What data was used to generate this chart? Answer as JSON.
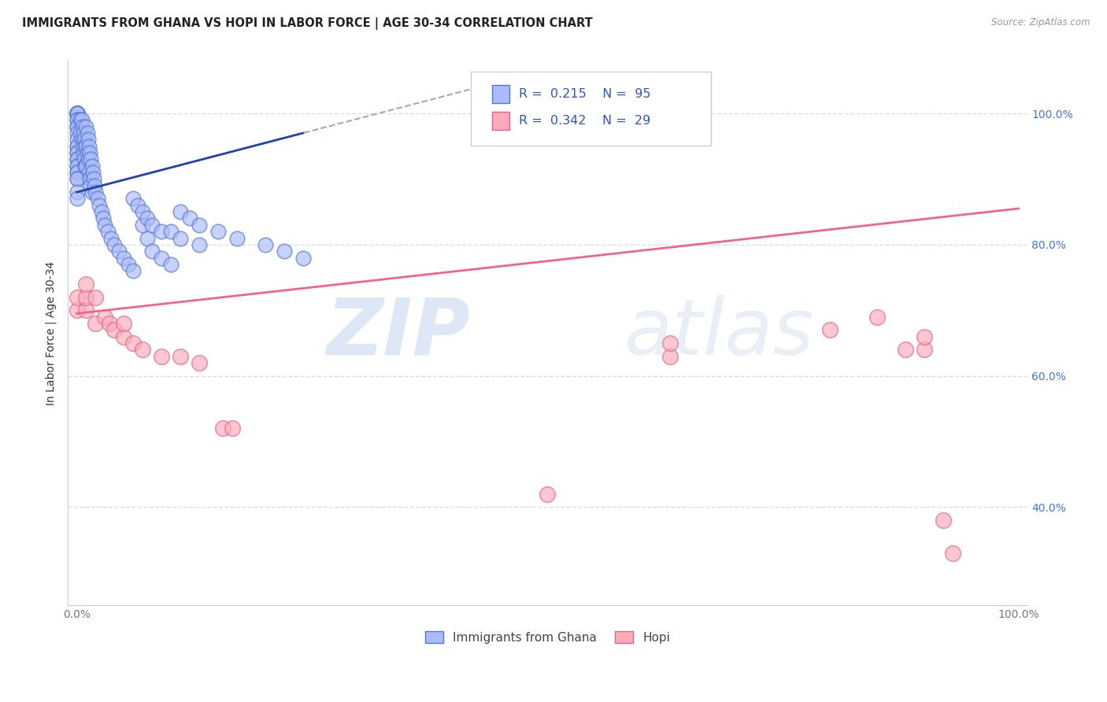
{
  "title": "IMMIGRANTS FROM GHANA VS HOPI IN LABOR FORCE | AGE 30-34 CORRELATION CHART",
  "source_text": "Source: ZipAtlas.com",
  "ylabel": "In Labor Force | Age 30-34",
  "xlim": [
    -0.01,
    1.01
  ],
  "ylim": [
    0.25,
    1.08
  ],
  "x_tick_positions": [
    0.0,
    0.2,
    0.4,
    0.6,
    0.8,
    1.0
  ],
  "x_tick_labels": [
    "0.0%",
    "",
    "",
    "",
    "",
    "100.0%"
  ],
  "y_tick_positions": [
    0.4,
    0.6,
    0.8,
    1.0
  ],
  "y_tick_labels": [
    "40.0%",
    "60.0%",
    "80.0%",
    "100.0%"
  ],
  "blue_R": 0.215,
  "blue_N": 95,
  "pink_R": 0.342,
  "pink_N": 29,
  "watermark_zip": "ZIP",
  "watermark_atlas": "atlas",
  "background_color": "#ffffff",
  "grid_color": "#dddddd",
  "blue_color": "#aabbff",
  "blue_edge_color": "#5577cc",
  "pink_color": "#ffaabb",
  "pink_edge_color": "#dd6688",
  "blue_line_color": "#2244aa",
  "blue_dash_color": "#99aacc",
  "pink_line_color": "#ee6688",
  "tick_color": "#4477dd",
  "legend_labels": [
    "Immigrants from Ghana",
    "Hopi"
  ],
  "title_fontsize": 10.5,
  "label_fontsize": 10,
  "tick_fontsize": 10,
  "legend_fontsize": 11,
  "blue_scatter_x": [
    0.0,
    0.0,
    0.0,
    0.0,
    0.0,
    0.0,
    0.0,
    0.0,
    0.0,
    0.0,
    0.0,
    0.0,
    0.0,
    0.0,
    0.0,
    0.0,
    0.0,
    0.0,
    0.0,
    0.0,
    0.0,
    0.0,
    0.0,
    0.0,
    0.0,
    0.0,
    0.0,
    0.0,
    0.0,
    0.0,
    0.004,
    0.004,
    0.005,
    0.005,
    0.006,
    0.006,
    0.007,
    0.007,
    0.008,
    0.008,
    0.009,
    0.009,
    0.01,
    0.01,
    0.01,
    0.011,
    0.011,
    0.012,
    0.012,
    0.013,
    0.013,
    0.014,
    0.014,
    0.015,
    0.015,
    0.016,
    0.016,
    0.017,
    0.018,
    0.019,
    0.02,
    0.022,
    0.024,
    0.026,
    0.028,
    0.03,
    0.033,
    0.036,
    0.04,
    0.045,
    0.05,
    0.055,
    0.06,
    0.07,
    0.075,
    0.08,
    0.09,
    0.1,
    0.11,
    0.12,
    0.13,
    0.15,
    0.17,
    0.2,
    0.22,
    0.24,
    0.06,
    0.065,
    0.07,
    0.075,
    0.08,
    0.09,
    0.1,
    0.11,
    0.13
  ],
  "blue_scatter_y": [
    1.0,
    1.0,
    1.0,
    1.0,
    1.0,
    1.0,
    1.0,
    1.0,
    1.0,
    1.0,
    0.99,
    0.99,
    0.98,
    0.98,
    0.97,
    0.96,
    0.95,
    0.95,
    0.94,
    0.94,
    0.93,
    0.93,
    0.92,
    0.92,
    0.91,
    0.91,
    0.9,
    0.9,
    0.88,
    0.87,
    0.99,
    0.97,
    0.99,
    0.96,
    0.98,
    0.95,
    0.97,
    0.94,
    0.96,
    0.93,
    0.95,
    0.92,
    0.98,
    0.95,
    0.92,
    0.97,
    0.94,
    0.96,
    0.93,
    0.95,
    0.91,
    0.94,
    0.9,
    0.93,
    0.89,
    0.92,
    0.88,
    0.91,
    0.9,
    0.89,
    0.88,
    0.87,
    0.86,
    0.85,
    0.84,
    0.83,
    0.82,
    0.81,
    0.8,
    0.79,
    0.78,
    0.77,
    0.76,
    0.83,
    0.81,
    0.79,
    0.78,
    0.77,
    0.85,
    0.84,
    0.83,
    0.82,
    0.81,
    0.8,
    0.79,
    0.78,
    0.87,
    0.86,
    0.85,
    0.84,
    0.83,
    0.82,
    0.82,
    0.81,
    0.8
  ],
  "pink_scatter_x": [
    0.0,
    0.0,
    0.01,
    0.01,
    0.01,
    0.02,
    0.02,
    0.03,
    0.035,
    0.04,
    0.05,
    0.05,
    0.06,
    0.07,
    0.09,
    0.11,
    0.13,
    0.155,
    0.165,
    0.63,
    0.63,
    0.8,
    0.85,
    0.88,
    0.9,
    0.9,
    0.92,
    0.93,
    0.5
  ],
  "pink_scatter_y": [
    0.7,
    0.72,
    0.7,
    0.72,
    0.74,
    0.68,
    0.72,
    0.69,
    0.68,
    0.67,
    0.66,
    0.68,
    0.65,
    0.64,
    0.63,
    0.63,
    0.62,
    0.52,
    0.52,
    0.63,
    0.65,
    0.67,
    0.69,
    0.64,
    0.64,
    0.66,
    0.38,
    0.33,
    0.42
  ]
}
